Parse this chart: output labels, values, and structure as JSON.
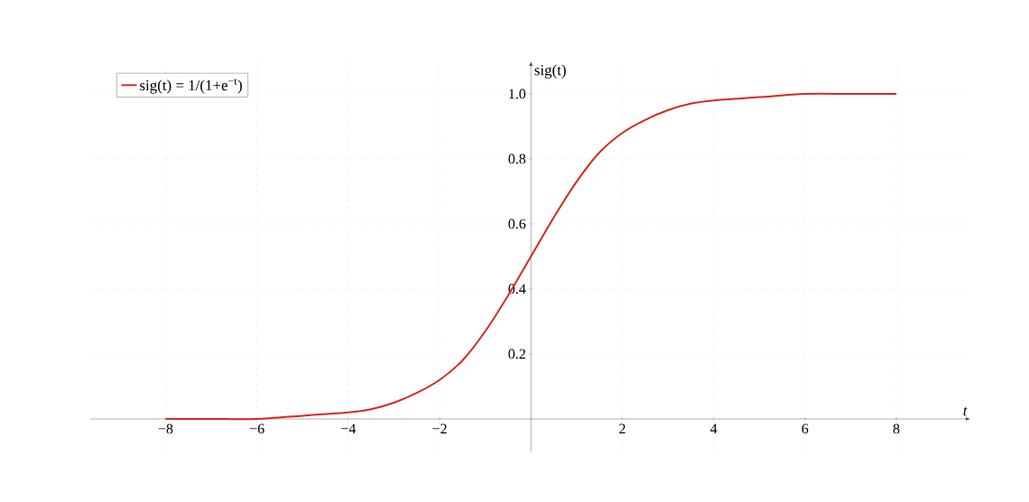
{
  "chart_data": {
    "type": "line",
    "xlabel": "t",
    "ylabel": "sig(t)",
    "x": [
      -8,
      -7,
      -6,
      -5,
      -4,
      -3.5,
      -3,
      -2.5,
      -2,
      -1.5,
      -1,
      -0.5,
      0,
      0.5,
      1,
      1.5,
      2,
      2.5,
      3,
      3.5,
      4,
      5,
      6,
      7,
      8
    ],
    "series": [
      {
        "name": "sig(t) = 1/(1+e$^{−t}$)",
        "color": "#d42a22",
        "values": [
          0.0,
          0.0,
          0.0,
          0.01,
          0.02,
          0.03,
          0.05,
          0.08,
          0.12,
          0.18,
          0.27,
          0.38,
          0.5,
          0.62,
          0.73,
          0.82,
          0.88,
          0.92,
          0.95,
          0.97,
          0.98,
          0.99,
          1.0,
          1.0,
          1.0
        ]
      }
    ],
    "xlim": [
      -9.65,
      9.62
    ],
    "ylim": [
      -0.1,
      1.1
    ],
    "xticks": [
      {
        "value": -8,
        "label": "−8"
      },
      {
        "value": -6,
        "label": "−6"
      },
      {
        "value": -4,
        "label": "−4"
      },
      {
        "value": -2,
        "label": "−2"
      },
      2,
      4,
      6,
      8
    ],
    "yticks": [
      0.2,
      0.4,
      0.6,
      0.8,
      {
        "value": 1,
        "label": "1.0"
      }
    ],
    "grid": true,
    "legend": "top left",
    "marker": "none",
    "line_style": "solid"
  }
}
